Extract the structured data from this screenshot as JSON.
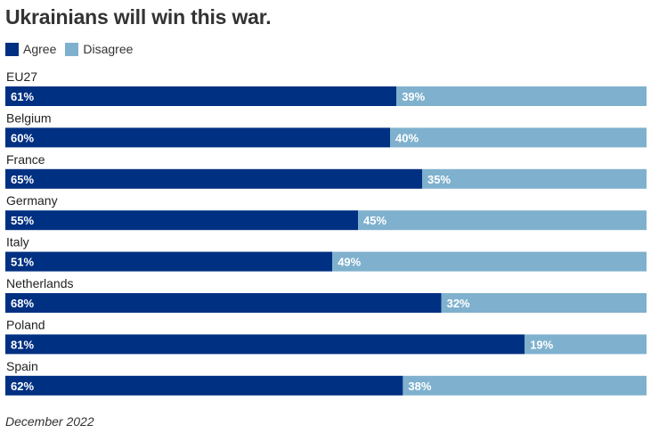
{
  "title": "Ukrainians will win this war.",
  "legend": [
    {
      "label": "Agree",
      "color": "#003082"
    },
    {
      "label": "Disagree",
      "color": "#7fb1ce"
    }
  ],
  "footer": "December 2022",
  "chart_data": {
    "type": "bar",
    "orientation": "horizontal",
    "stacked": true,
    "title": "Ukrainians will win this war.",
    "categories": [
      "EU27",
      "Belgium",
      "France",
      "Germany",
      "Italy",
      "Netherlands",
      "Poland",
      "Spain"
    ],
    "series": [
      {
        "name": "Agree",
        "color": "#003082",
        "values": [
          61,
          60,
          65,
          55,
          51,
          68,
          81,
          62
        ],
        "labels": [
          "61%",
          "60%",
          "65%",
          "55%",
          "51%",
          "68%",
          "81%",
          "62%"
        ]
      },
      {
        "name": "Disagree",
        "color": "#7fb1ce",
        "values": [
          39,
          40,
          35,
          45,
          49,
          32,
          19,
          38
        ],
        "labels": [
          "39%",
          "40%",
          "35%",
          "45%",
          "49%",
          "32%",
          "19%",
          "38%"
        ]
      }
    ],
    "xlim": [
      0,
      100
    ],
    "xlabel": "",
    "ylabel": "",
    "legend_position": "top-left",
    "grid": false
  }
}
